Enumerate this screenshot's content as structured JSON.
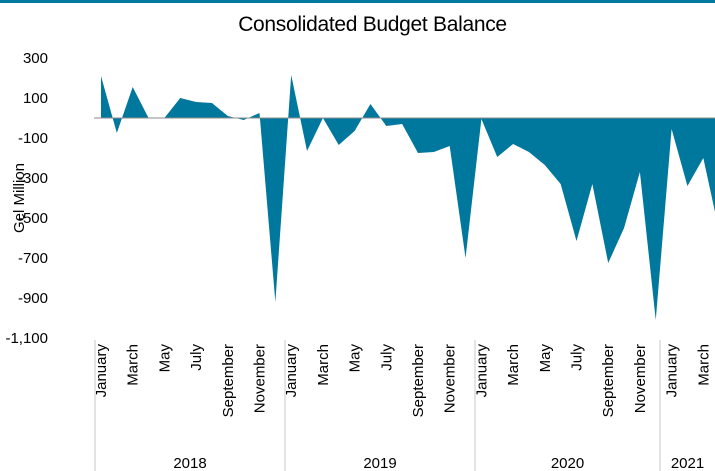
{
  "chart_data": {
    "type": "area",
    "title": "Consolidated Budget Balance",
    "ylabel": "Gel Million",
    "xlabel": "",
    "ylim": [
      -1100,
      300
    ],
    "yticks": [
      300,
      100,
      -100,
      -300,
      -500,
      -700,
      -900,
      -1100
    ],
    "ytick_labels": [
      "300",
      "100",
      "-100",
      "-300",
      "-500",
      "-700",
      "-900",
      "-1,100"
    ],
    "grid": false,
    "legend": "none",
    "color": "#00779c",
    "month_labels": [
      "January",
      "March",
      "May",
      "July",
      "September",
      "November"
    ],
    "month_labels_2021": [
      "January",
      "March"
    ],
    "years": [
      "2018",
      "2019",
      "2020",
      "2021"
    ],
    "series": [
      {
        "values": [
          210,
          -75,
          155,
          0,
          0,
          100,
          80,
          75,
          10,
          -10,
          25,
          -920,
          215,
          -165,
          0,
          -135,
          -65,
          70,
          -40,
          -30,
          -175,
          -170,
          -140,
          -700,
          -5,
          -195,
          -130,
          -170,
          -235,
          -330,
          -615,
          -330,
          -725,
          -550,
          -270,
          -1010,
          -55,
          -340,
          -200,
          -565
        ]
      }
    ]
  }
}
